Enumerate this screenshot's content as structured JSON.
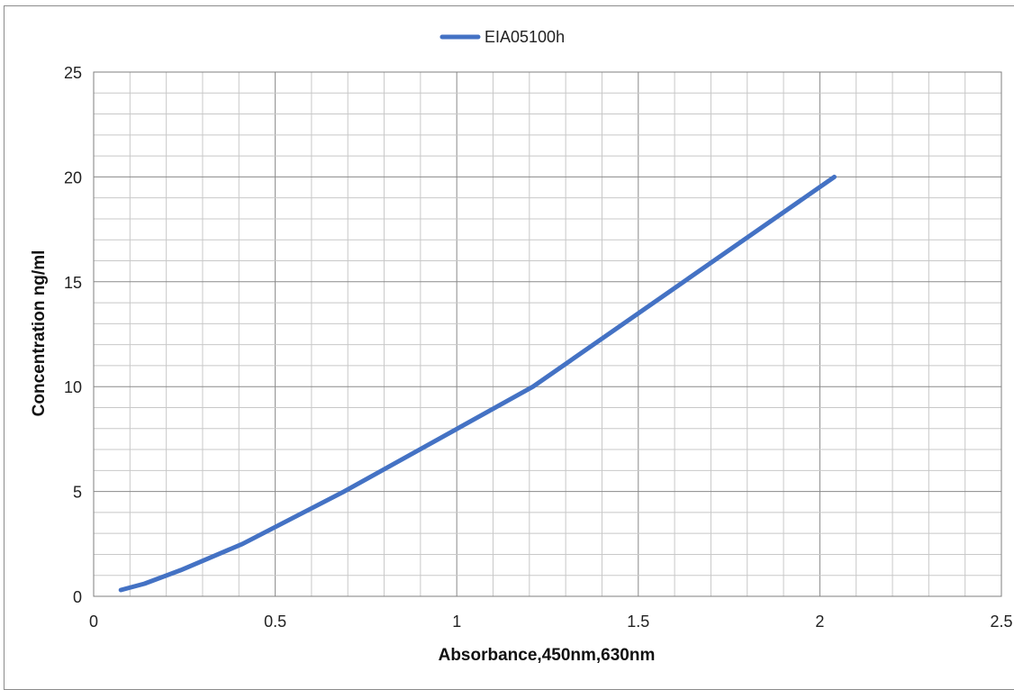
{
  "chart_data": {
    "type": "line",
    "title": "",
    "xlabel": "Absorbance,450nm,630nm",
    "ylabel": "Concentration ng/ml",
    "xlim": [
      0,
      2.5
    ],
    "ylim": [
      0,
      25
    ],
    "x_ticks": [
      "0",
      "0.5",
      "1",
      "1.5",
      "2",
      "2.5"
    ],
    "y_ticks": [
      "0",
      "5",
      "10",
      "15",
      "20",
      "25"
    ],
    "grid": true,
    "legend_position": "top",
    "series": [
      {
        "name": "EIA05100h",
        "color": "#4472c4",
        "x": [
          0.075,
          0.14,
          0.24,
          0.41,
          0.69,
          1.21,
          2.04
        ],
        "y": [
          0.3,
          0.6,
          1.25,
          2.5,
          5.0,
          10.0,
          20.0
        ]
      }
    ]
  }
}
